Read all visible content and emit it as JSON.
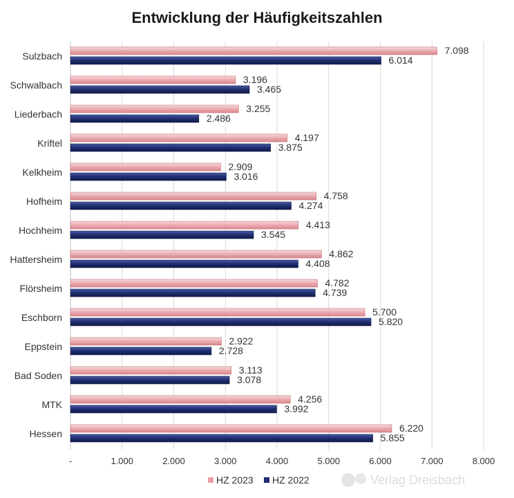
{
  "chart_data": {
    "type": "bar",
    "orientation": "horizontal",
    "title": "Entwicklung der Häufigkeitszahlen",
    "categories": [
      "Sulzbach",
      "Schwalbach",
      "Liederbach",
      "Kriftel",
      "Kelkheim",
      "Hofheim",
      "Hochheim",
      "Hattersheim",
      "Flörsheim",
      "Eschborn",
      "Eppstein",
      "Bad Soden",
      "MTK",
      "Hessen"
    ],
    "series": [
      {
        "name": "HZ 2023",
        "color": "#e8a0a4",
        "values": [
          7098,
          3196,
          3255,
          4197,
          2909,
          4758,
          4413,
          4862,
          4782,
          5700,
          2922,
          3113,
          4256,
          6220
        ],
        "labels": [
          "7.098",
          "3.196",
          "3.255",
          "4.197",
          "2.909",
          "4.758",
          "4.413",
          "4.862",
          "4.782",
          "5.700",
          "2.922",
          "3.113",
          "4.256",
          "6.220"
        ]
      },
      {
        "name": "HZ 2022",
        "color": "#1f2d6e",
        "values": [
          6014,
          3465,
          2486,
          3875,
          3016,
          4274,
          3545,
          4408,
          4739,
          5820,
          2728,
          3078,
          3992,
          5855
        ],
        "labels": [
          "6.014",
          "3.465",
          "2.486",
          "3.875",
          "3.016",
          "4.274",
          "3.545",
          "4.408",
          "4.739",
          "5.820",
          "2.728",
          "3.078",
          "3.992",
          "5.855"
        ]
      }
    ],
    "xlim": [
      0,
      8000
    ],
    "xticks": [
      0,
      1000,
      2000,
      3000,
      4000,
      5000,
      6000,
      7000,
      8000
    ],
    "xtick_labels": [
      "-",
      "1.000",
      "2.000",
      "3.000",
      "4.000",
      "5.000",
      "6.000",
      "7.000",
      "8.000"
    ],
    "grid": true,
    "legend_position": "bottom-center",
    "xlabel": "",
    "ylabel": ""
  },
  "watermark": "Verlag Dreisbach"
}
